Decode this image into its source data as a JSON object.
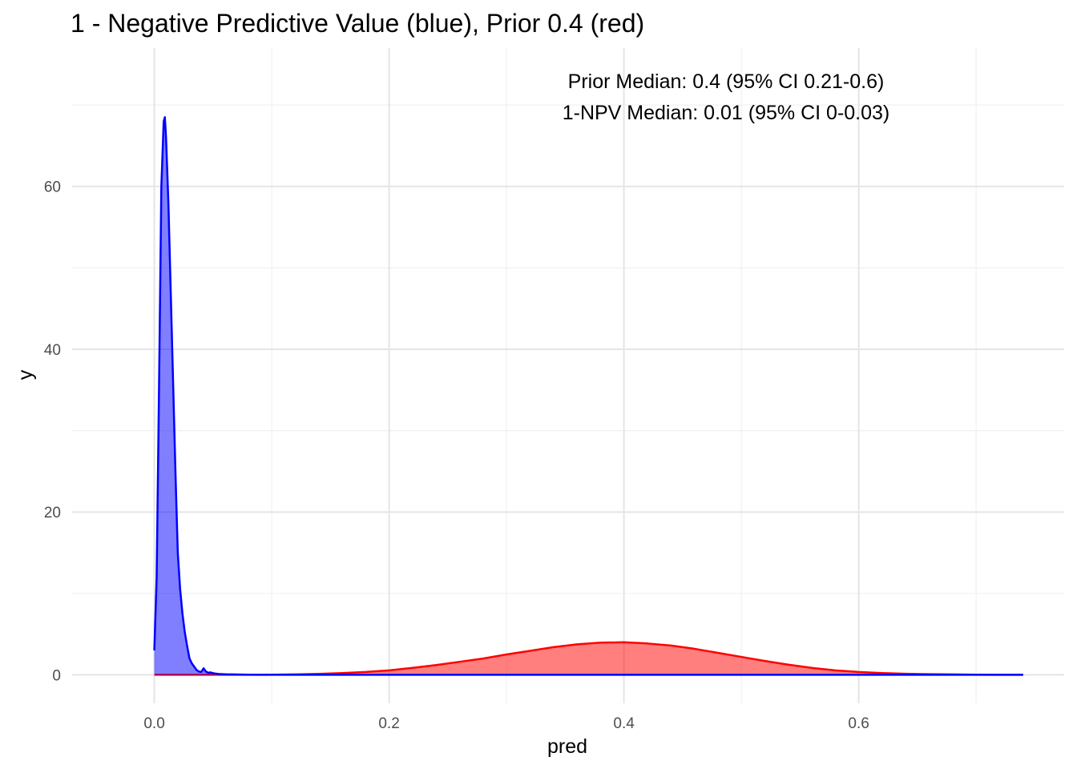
{
  "chart_data": {
    "type": "area",
    "title": "1 - Negative Predictive Value (blue), Prior 0.4 (red)",
    "xlabel": "pred",
    "ylabel": "y",
    "xlim": [
      -0.07,
      0.775
    ],
    "ylim": [
      -3.5,
      77
    ],
    "x_ticks": [
      0.0,
      0.2,
      0.4,
      0.6
    ],
    "x_tick_labels": [
      "0.0",
      "0.2",
      "0.4",
      "0.6"
    ],
    "y_ticks": [
      0,
      20,
      40,
      60
    ],
    "y_tick_labels": [
      "0",
      "20",
      "40",
      "60"
    ],
    "grid": true,
    "legend": "none",
    "annotations": [
      "Prior Median: 0.4 (95% CI 0.21-0.6)",
      "1-NPV Median: 0.01 (95% CI 0-0.03)"
    ],
    "series": [
      {
        "color": "#ff0000",
        "fill": "#ff0000",
        "x": [
          0.0,
          0.05,
          0.08,
          0.1,
          0.12,
          0.14,
          0.16,
          0.18,
          0.2,
          0.22,
          0.24,
          0.26,
          0.28,
          0.3,
          0.32,
          0.34,
          0.36,
          0.38,
          0.4,
          0.42,
          0.44,
          0.46,
          0.48,
          0.5,
          0.52,
          0.54,
          0.56,
          0.58,
          0.6,
          0.62,
          0.64,
          0.66,
          0.68,
          0.7,
          0.72,
          0.74
        ],
        "values": [
          0.0,
          0.0,
          0.0,
          0.02,
          0.05,
          0.12,
          0.22,
          0.35,
          0.55,
          0.85,
          1.2,
          1.6,
          2.0,
          2.5,
          2.95,
          3.4,
          3.75,
          3.95,
          4.0,
          3.85,
          3.6,
          3.2,
          2.7,
          2.2,
          1.7,
          1.25,
          0.85,
          0.55,
          0.35,
          0.22,
          0.13,
          0.08,
          0.05,
          0.02,
          0.01,
          0.0
        ]
      },
      {
        "color": "#0000ff",
        "fill": "#0000ff",
        "x": [
          0.0,
          0.002,
          0.004,
          0.006,
          0.008,
          0.009,
          0.01,
          0.012,
          0.014,
          0.016,
          0.018,
          0.02,
          0.022,
          0.024,
          0.026,
          0.028,
          0.03,
          0.032,
          0.034,
          0.036,
          0.038,
          0.04,
          0.042,
          0.044,
          0.046,
          0.048,
          0.05,
          0.052,
          0.055,
          0.058,
          0.062,
          0.066,
          0.07,
          0.075,
          0.08,
          0.09,
          0.1,
          0.15,
          0.2,
          0.3,
          0.4,
          0.5,
          0.6,
          0.7,
          0.74
        ],
        "values": [
          3.0,
          12.0,
          35.0,
          60.0,
          68.0,
          68.5,
          66.0,
          58.0,
          47.0,
          36.0,
          25.0,
          15.0,
          10.5,
          7.5,
          5.2,
          3.5,
          2.0,
          1.4,
          1.0,
          0.6,
          0.4,
          0.35,
          0.8,
          0.4,
          0.25,
          0.3,
          0.2,
          0.15,
          0.1,
          0.08,
          0.06,
          0.05,
          0.04,
          0.03,
          0.02,
          0.01,
          0.0,
          0.0,
          0.0,
          0.0,
          0.0,
          0.0,
          0.0,
          0.0,
          0.0
        ]
      }
    ]
  }
}
